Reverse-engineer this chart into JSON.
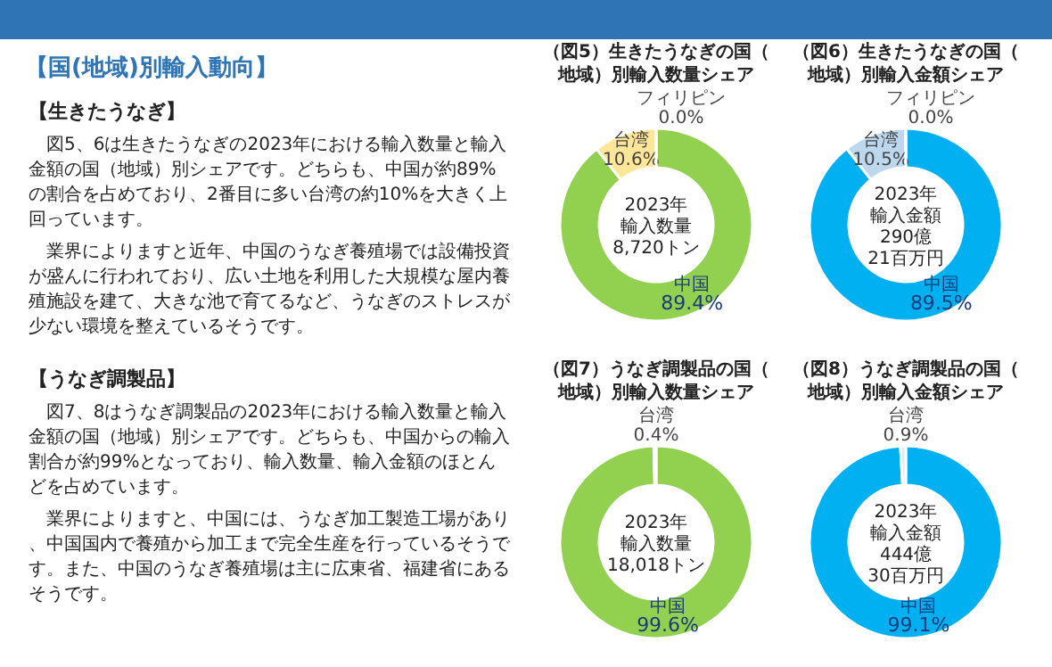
{
  "chart_data": [
    {
      "type": "other",
      "title": "【国(地域)別輸入動向】",
      "annotations": [
        "【生きたうなぎ】",
        "図5、6は生きたうなぎの2023年における輸入数量と輸入金額の国（地域）別シェアです。どちらも、中国が約89%の割合を占めており、2番目に多い台湾の約10%を大きく上回っています。",
        "業界によりますと近年、中国のうなぎ養殖場では設備投資が盛んに行われており、広い土地を利用した大規模な屋内養殖施設を建て、大きな池で育てるなど、うなぎのストレスが少ない環境を整えているそうです。",
        "【うなぎ調製品】",
        "図7、8はうなぎ調製品の2023年における輸入数量と輸入金額の国（地域）別シェアです。どちらも、中国からの輸入割合が約99%となっており、輸入数量、輸入金額のほとんどを占めています。",
        "業界によりますと、中国には、うなぎ加工製造工場があり、中国国内で養殖から加工まで完全生産を行っているそうです。また、中国のうなぎ養殖場は主に広東省、福建省にあるそうです。"
      ]
    },
    {
      "type": "donut",
      "title": "（図5）生きたうなぎの国（地域）別輸入数量シェア",
      "categories": [
        "中国",
        "台湾",
        "フィリピン"
      ],
      "values": [
        89.4,
        10.6,
        0.0
      ],
      "value_labels": [
        "89.4%",
        "10.6%",
        "0.0%"
      ],
      "colors": [
        "#92d050",
        "#ffe699",
        "#ffffff"
      ],
      "annotations": [
        "2023年",
        "輸入数量",
        "8,720トン"
      ]
    },
    {
      "type": "donut",
      "title": "（図6）生きたうなぎの国（地域）別輸入金額シェア",
      "categories": [
        "中国",
        "台湾",
        "フィリピン"
      ],
      "values": [
        89.5,
        10.5,
        0.0
      ],
      "value_labels": [
        "89.5%",
        "10.5%",
        "0.0%"
      ],
      "colors": [
        "#00b0f0",
        "#bdd7ee",
        "#ffffff"
      ],
      "annotations": [
        "2023年",
        "輸入金額",
        "290億",
        "21百万円"
      ]
    },
    {
      "type": "donut",
      "title": "（図7）うなぎ調製品の国（地域）別輸入数量シェア",
      "categories": [
        "中国",
        "台湾"
      ],
      "values": [
        99.6,
        0.4
      ],
      "value_labels": [
        "99.6%",
        "0.4%"
      ],
      "colors": [
        "#92d050",
        "#e2efda"
      ],
      "annotations": [
        "2023年",
        "輸入数量",
        "18,018トン"
      ]
    },
    {
      "type": "donut",
      "title": "（図8）うなぎ調製品の国（地域）別輸入金額シェア",
      "categories": [
        "中国",
        "台湾"
      ],
      "values": [
        99.1,
        0.9
      ],
      "value_labels": [
        "99.1%",
        "0.9%"
      ],
      "colors": [
        "#00b0f0",
        "#deebf7"
      ],
      "annotations": [
        "2023年",
        "輸入金額",
        "444億",
        "30百万円"
      ]
    }
  ]
}
